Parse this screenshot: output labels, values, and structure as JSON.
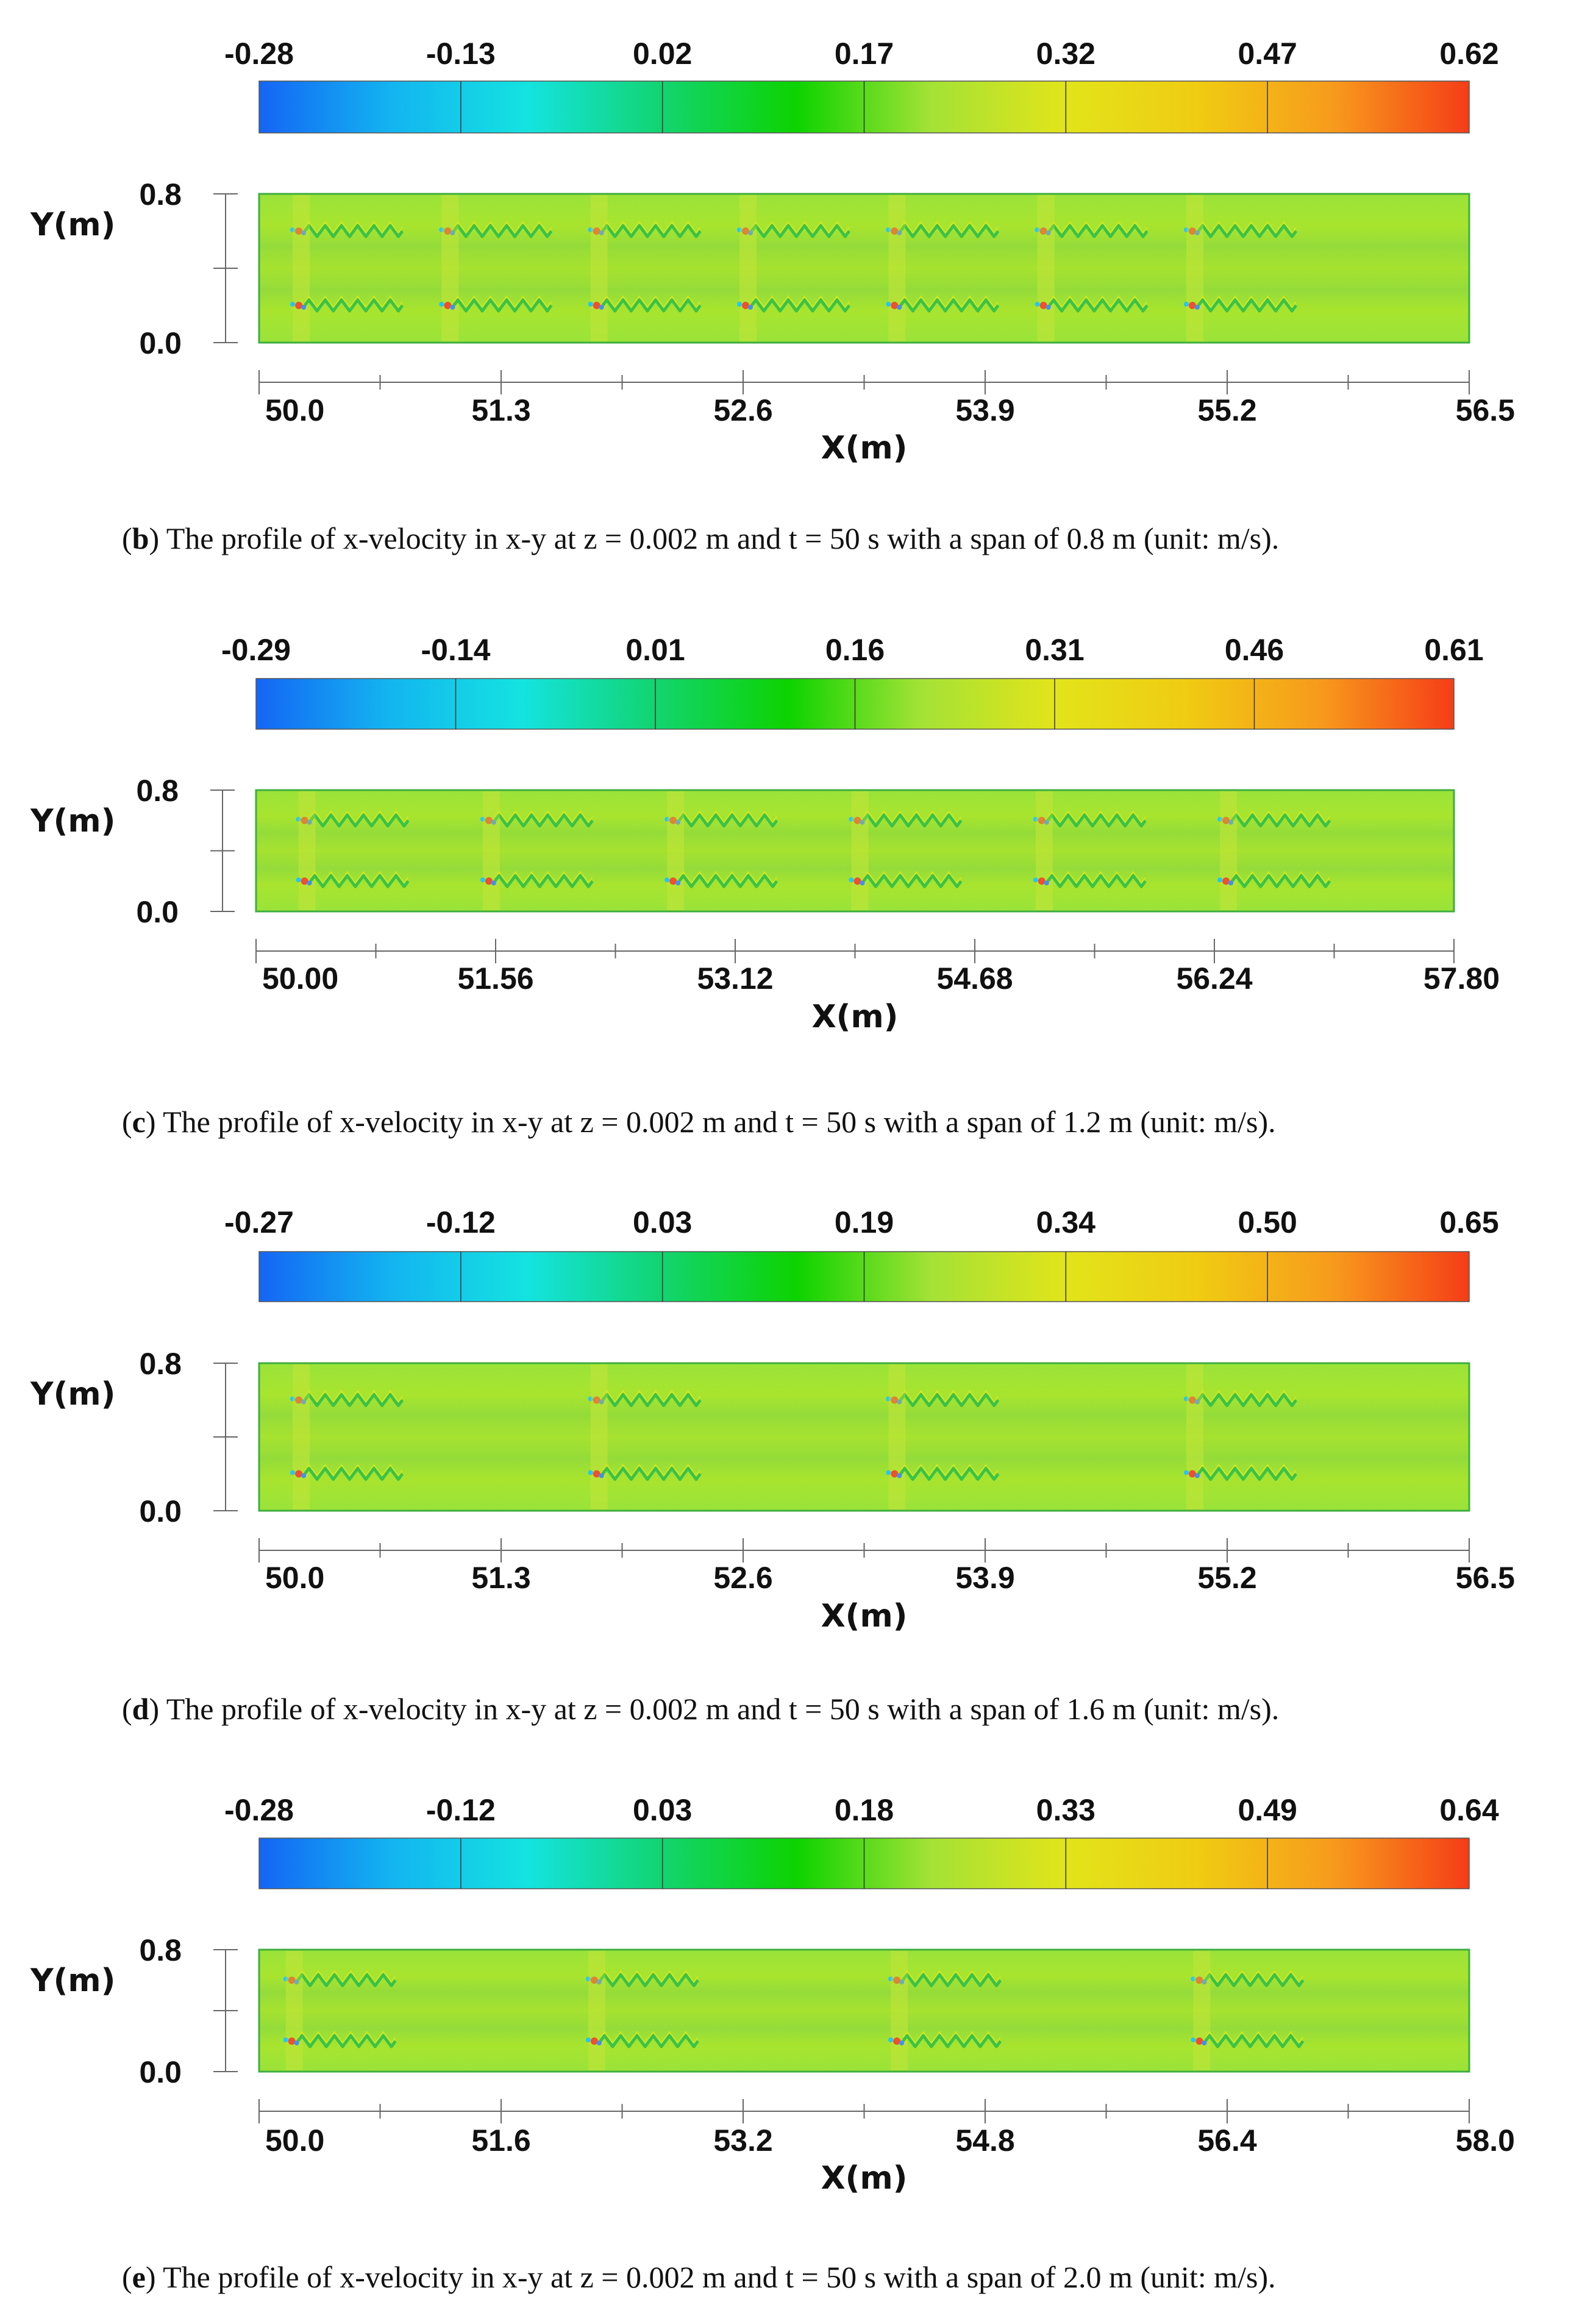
{
  "chart_data": [
    {
      "type": "heatmap",
      "label": "b",
      "caption": "The profile of x-velocity in x-y at z = 0.002 m and t = 50 s with a span of 0.8 m (unit: m/s).",
      "colorbar_ticks": [
        "-0.28",
        "-0.13",
        "0.02",
        "0.17",
        "0.32",
        "0.47",
        "0.62"
      ],
      "colorbar_range": [
        -0.28,
        0.62
      ],
      "xlabel": "X(m)",
      "ylabel": "Y(m)",
      "x_ticks": [
        "50.0",
        "51.3",
        "52.6",
        "53.9",
        "55.2",
        "56.5"
      ],
      "y_ticks": [
        "0.8",
        "0.0"
      ],
      "xlim": [
        50.0,
        56.5
      ],
      "ylim": [
        0.0,
        0.8
      ],
      "wake_rows_y": [
        0.6,
        0.2
      ],
      "wake_sources_x": [
        50.2,
        51.0,
        51.8,
        52.6,
        53.4,
        54.2,
        55.0
      ],
      "background_color": "#9ee234"
    },
    {
      "type": "heatmap",
      "label": "c",
      "caption": "The profile of x-velocity in x-y at z = 0.002 m and t = 50 s with a span of 1.2 m (unit: m/s).",
      "colorbar_ticks": [
        "-0.29",
        "-0.14",
        "0.01",
        "0.16",
        "0.31",
        "0.46",
        "0.61"
      ],
      "colorbar_range": [
        -0.29,
        0.61
      ],
      "xlabel": "X(m)",
      "ylabel": "Y(m)",
      "x_ticks": [
        "50.00",
        "51.56",
        "53.12",
        "54.68",
        "56.24",
        "57.80"
      ],
      "y_ticks": [
        "0.8",
        "0.0"
      ],
      "xlim": [
        50.0,
        57.8
      ],
      "ylim": [
        0.0,
        0.8
      ],
      "wake_rows_y": [
        0.6,
        0.2
      ],
      "wake_sources_x": [
        50.3,
        51.5,
        52.7,
        53.9,
        55.1,
        56.3
      ],
      "background_color": "#a6e232"
    },
    {
      "type": "heatmap",
      "label": "d",
      "caption": "The profile of x-velocity in x-y at z = 0.002 m and t = 50 s with a span of 1.6 m (unit: m/s).",
      "colorbar_ticks": [
        "-0.27",
        "-0.12",
        "0.03",
        "0.19",
        "0.34",
        "0.50",
        "0.65"
      ],
      "colorbar_range": [
        -0.27,
        0.65
      ],
      "xlabel": "X(m)",
      "ylabel": "Y(m)",
      "x_ticks": [
        "50.0",
        "51.3",
        "52.6",
        "53.9",
        "55.2",
        "56.5"
      ],
      "y_ticks": [
        "0.8",
        "0.0"
      ],
      "xlim": [
        50.0,
        56.5
      ],
      "ylim": [
        0.0,
        0.8
      ],
      "wake_rows_y": [
        0.6,
        0.2
      ],
      "wake_sources_x": [
        50.2,
        51.8,
        53.4,
        55.0
      ],
      "background_color": "#9be233"
    },
    {
      "type": "heatmap",
      "label": "e",
      "caption": "The profile of x-velocity in x-y at z = 0.002 m and t = 50 s with a span of 2.0 m (unit: m/s).",
      "colorbar_ticks": [
        "-0.28",
        "-0.12",
        "0.03",
        "0.18",
        "0.33",
        "0.49",
        "0.64"
      ],
      "colorbar_range": [
        -0.28,
        0.64
      ],
      "xlabel": "X(m)",
      "ylabel": "Y(m)",
      "x_ticks": [
        "50.0",
        "51.6",
        "53.2",
        "54.8",
        "56.4",
        "58.0"
      ],
      "y_ticks": [
        "0.8",
        "0.0"
      ],
      "xlim": [
        50.0,
        58.0
      ],
      "ylim": [
        0.0,
        0.8
      ],
      "wake_rows_y": [
        0.6,
        0.2
      ],
      "wake_sources_x": [
        50.2,
        52.2,
        54.2,
        56.2
      ],
      "background_color": "#9ee233"
    }
  ],
  "colormap": [
    "#1565f5",
    "#13b5f0",
    "#14e3e0",
    "#12d470",
    "#0dd300",
    "#a4e236",
    "#e2e41a",
    "#f0cb12",
    "#f79a1c",
    "#f53d17"
  ]
}
